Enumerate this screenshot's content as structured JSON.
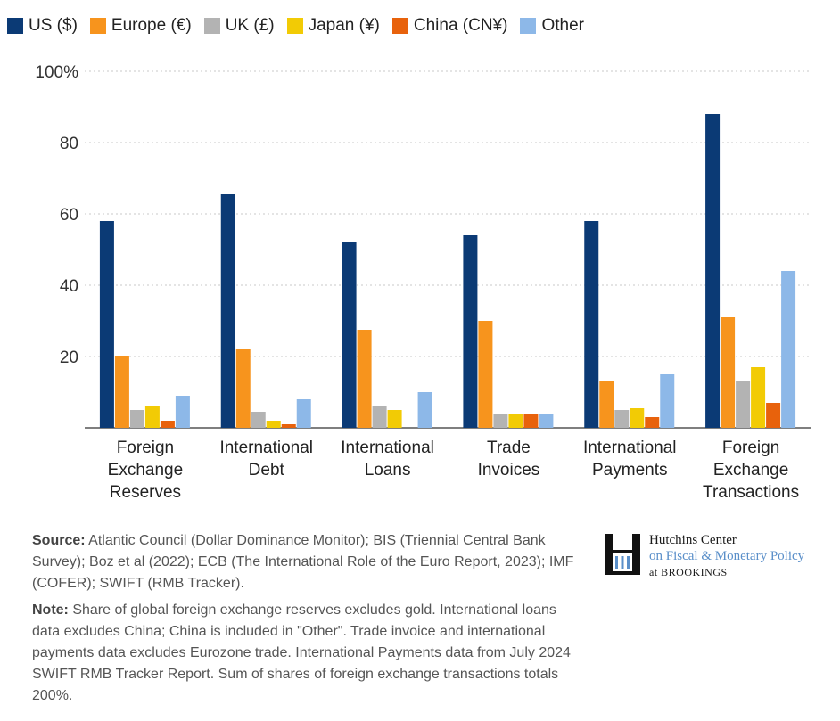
{
  "legend": [
    {
      "name": "US ($)",
      "color": "#0b3a75"
    },
    {
      "name": "Europe (€)",
      "color": "#f7941d"
    },
    {
      "name": "UK (£)",
      "color": "#b3b3b3"
    },
    {
      "name": "Japan (¥)",
      "color": "#f2cb05"
    },
    {
      "name": "China (CN¥)",
      "color": "#e8620c"
    },
    {
      "name": "Other",
      "color": "#8db8e8"
    }
  ],
  "chart_data": {
    "type": "bar",
    "categories": [
      [
        "Foreign",
        "Exchange",
        "Reserves"
      ],
      [
        "International",
        "Debt"
      ],
      [
        "International",
        "Loans"
      ],
      [
        "Trade",
        "Invoices"
      ],
      [
        "International",
        "Payments"
      ],
      [
        "Foreign",
        "Exchange",
        "Transactions"
      ]
    ],
    "series": [
      {
        "name": "US ($)",
        "color": "#0b3a75",
        "values": [
          58,
          65.5,
          52,
          54,
          58,
          88
        ]
      },
      {
        "name": "Europe (€)",
        "color": "#f7941d",
        "values": [
          20,
          22,
          27.5,
          30,
          13,
          31
        ]
      },
      {
        "name": "UK (£)",
        "color": "#b3b3b3",
        "values": [
          5,
          4.5,
          6,
          4,
          5,
          13
        ]
      },
      {
        "name": "Japan (¥)",
        "color": "#f2cb05",
        "values": [
          6,
          2,
          5,
          4,
          5.5,
          17
        ]
      },
      {
        "name": "China (CN¥)",
        "color": "#e8620c",
        "values": [
          2,
          1,
          0,
          4,
          3,
          7
        ]
      },
      {
        "name": "Other",
        "color": "#8db8e8",
        "values": [
          9,
          8,
          10,
          4,
          15,
          44
        ]
      }
    ],
    "yticks": [
      "100%",
      "80",
      "60",
      "40",
      "20"
    ],
    "ytick_values": [
      100,
      80,
      60,
      40,
      20
    ],
    "ylim": [
      0,
      100
    ],
    "grid": true,
    "legend_position": "top-left"
  },
  "notes": {
    "source_label": "Source:",
    "source_text": " Atlantic Council (Dollar Dominance Monitor); BIS (Triennial Central Bank Survey); Boz et al (2022); ECB (The International Role of the Euro Report, 2023); IMF (COFER); SWIFT (RMB Tracker).",
    "note_label": "Note:",
    "note_text": " Share of global foreign exchange reserves excludes gold. International loans data excludes China; China is included in \"Other\". Trade invoice and international payments data excludes Eurozone trade. International Payments data from July 2024 SWIFT RMB Tracker Report. Sum of shares of foreign exchange transactions totals 200%."
  },
  "logo": {
    "line1": "Hutchins Center",
    "line2": "on Fiscal & Monetary Policy",
    "line3": "at BROOKINGS"
  }
}
